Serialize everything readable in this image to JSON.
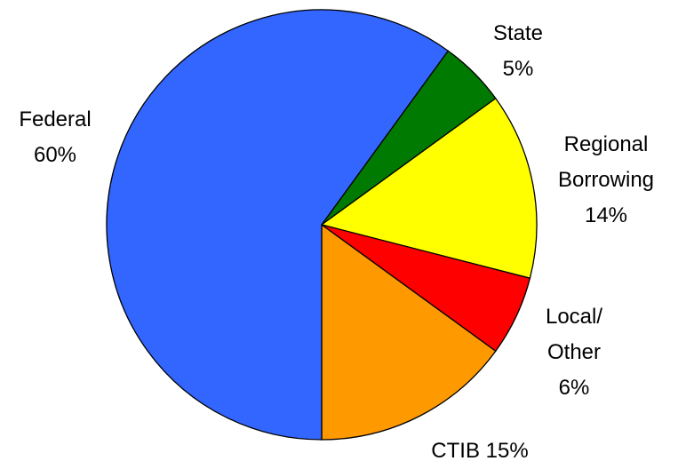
{
  "chart_data": {
    "type": "pie",
    "categories": [
      "State",
      "Regional Borrowing",
      "Local/ Other",
      "CTIB",
      "Federal"
    ],
    "values": [
      5,
      14,
      6,
      15,
      60
    ],
    "value_labels": [
      "5%",
      "14%",
      "6%",
      "15%",
      "60%"
    ],
    "colors": [
      "#007a00",
      "#ffff00",
      "#ff0000",
      "#ff9900",
      "#3366ff"
    ]
  }
}
